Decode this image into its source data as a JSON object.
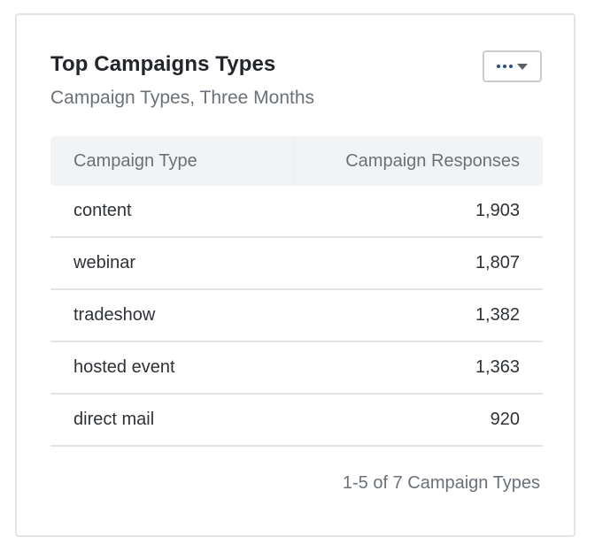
{
  "card": {
    "title": "Top Campaigns Types",
    "subtitle": "Campaign Types, Three Months",
    "menu_icon": "ellipsis-icon",
    "menu_caret_icon": "caret-down-icon"
  },
  "table": {
    "columns": [
      "Campaign Type",
      "Campaign Responses"
    ],
    "rows": [
      {
        "type": "content",
        "responses": "1,903"
      },
      {
        "type": "webinar",
        "responses": "1,807"
      },
      {
        "type": "tradeshow",
        "responses": "1,382"
      },
      {
        "type": "hosted event",
        "responses": "1,363"
      },
      {
        "type": "direct mail",
        "responses": "920"
      }
    ]
  },
  "pagination": {
    "label": "1-5 of 7 Campaign Types"
  }
}
